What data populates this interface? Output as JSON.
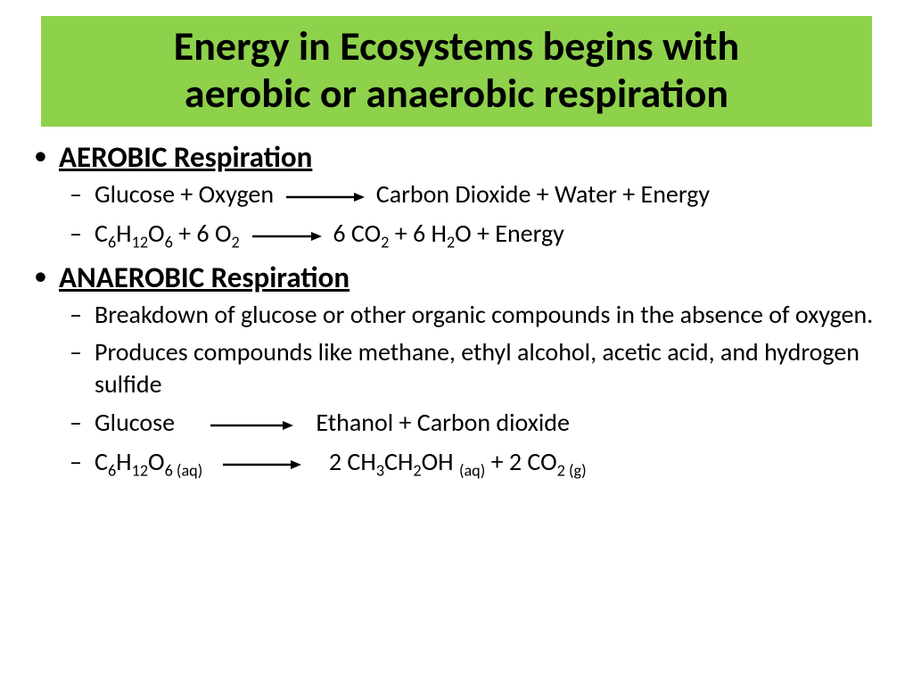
{
  "title_line1": "Energy in Ecosystems begins with",
  "title_line2": "aerobic or anaerobic respiration",
  "title_bg": "#8ed14b",
  "section1": {
    "heading": "AEROBIC Respiration",
    "line1_left": "Glucose + Oxygen",
    "line1_right": "Carbon Dioxide + Water + Energy",
    "line2_left_html": "C<sub>6</sub>H<sub>12</sub>O<sub>6</sub> + 6 O<sub>2</sub>",
    "line2_right_html": "6 CO<sub>2</sub> + 6 H<sub>2</sub>O + Energy"
  },
  "section2": {
    "heading": "ANAEROBIC Respiration",
    "line1": "Breakdown of glucose or other organic compounds in the absence of oxygen.",
    "line2": "Produces compounds like methane, ethyl alcohol, acetic acid, and hydrogen sulfide",
    "line3_left": "Glucose",
    "line3_right": "Ethanol + Carbon dioxide",
    "line4_left_html": " C<sub>6</sub>H<sub>12</sub>O<sub>6 (aq)</sub>",
    "line4_right_html": "2 CH<sub>3</sub>CH<sub>2</sub>OH <sub>(aq)</sub> + 2 CO<sub>2  (g)</sub>"
  },
  "arrow_color": "#000000",
  "font_sizes": {
    "title": 46,
    "heading": 33,
    "body": 28
  }
}
